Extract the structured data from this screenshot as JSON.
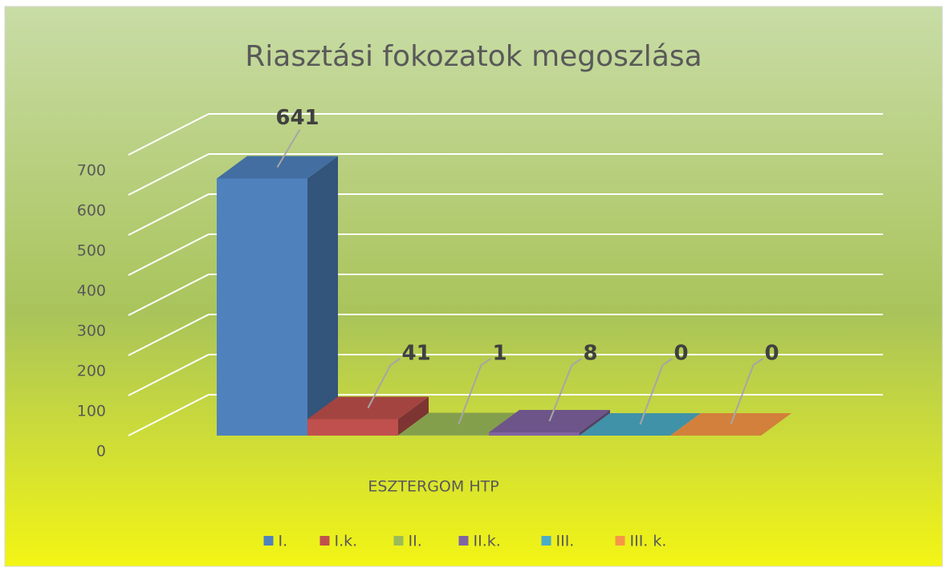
{
  "chart_data": {
    "type": "bar",
    "title": "Riasztási fokozatok megoszlása",
    "categories": [
      "ESZTERGOM HTP"
    ],
    "series": [
      {
        "name": "I.",
        "color": "#4f81bd",
        "values": [
          641
        ]
      },
      {
        "name": "I.k.",
        "color": "#c0504d",
        "values": [
          41
        ]
      },
      {
        "name": "II.",
        "color": "#9bbb59",
        "values": [
          1
        ]
      },
      {
        "name": "II.k.",
        "color": "#8064a2",
        "values": [
          8
        ]
      },
      {
        "name": "III.",
        "color": "#4bacc6",
        "values": [
          0
        ]
      },
      {
        "name": "III. k.",
        "color": "#f79646",
        "values": [
          0
        ]
      }
    ],
    "ylim": [
      0,
      700
    ],
    "yticks": [
      0,
      100,
      200,
      300,
      400,
      500,
      600,
      700
    ],
    "grid": true,
    "legend": "bottom"
  }
}
